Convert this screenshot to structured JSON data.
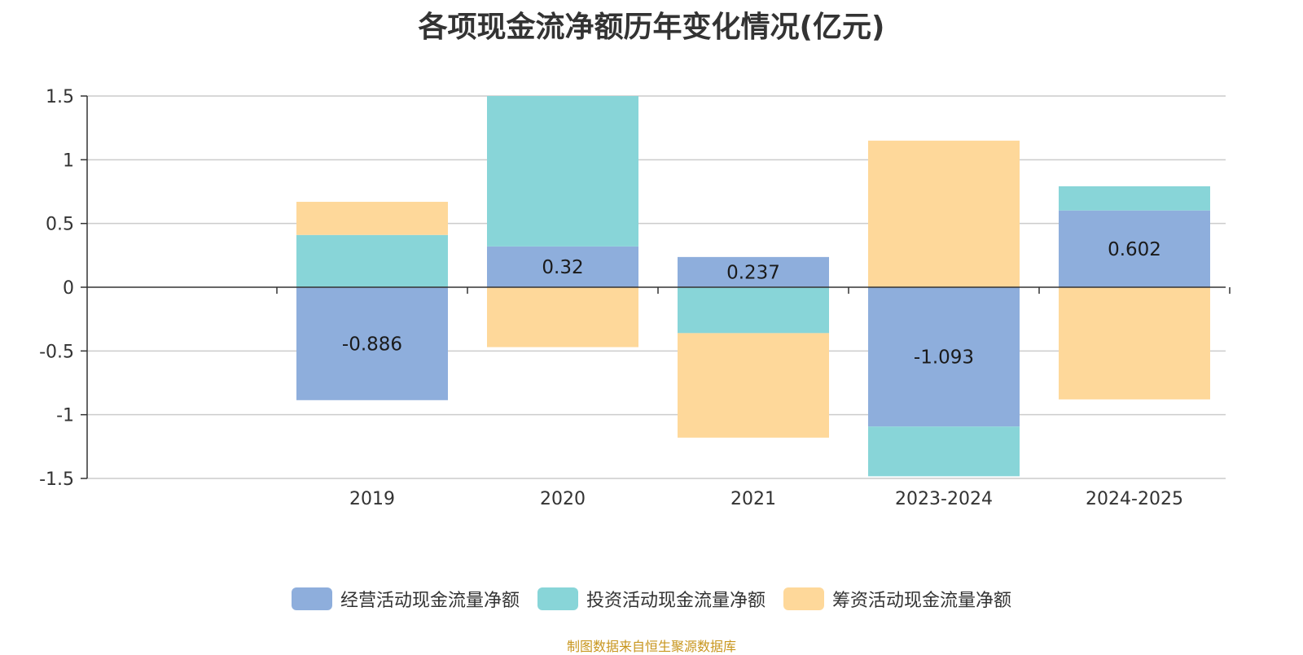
{
  "chart_data": {
    "type": "bar",
    "stacked": true,
    "title": "各项现金流净额历年变化情况(亿元)",
    "categories": [
      "2019",
      "2020",
      "2021",
      "2023-2024",
      "2024-2025"
    ],
    "series": [
      {
        "name": "经营活动现金流量净额",
        "color": "#8eaedc",
        "values": [
          -0.886,
          0.32,
          0.237,
          -1.093,
          0.602
        ]
      },
      {
        "name": "投资活动现金流量净额",
        "color": "#88d5d8",
        "values": [
          0.41,
          1.18,
          -0.36,
          -0.39,
          0.19
        ]
      },
      {
        "name": "筹资活动现金流量净额",
        "color": "#fed89a",
        "values": [
          0.26,
          -0.47,
          -0.82,
          1.15,
          -0.88
        ]
      }
    ],
    "data_labels": [
      "-0.886",
      "0.32",
      "0.237",
      "-1.093",
      "0.602"
    ],
    "ylim": [
      -1.5,
      1.5
    ],
    "yticks": [
      "1.5",
      "1",
      "0.5",
      "0",
      "-0.5",
      "-1",
      "-1.5"
    ],
    "grid": true,
    "legend_position": "bottom"
  },
  "source": "制图数据来自恒生聚源数据库"
}
